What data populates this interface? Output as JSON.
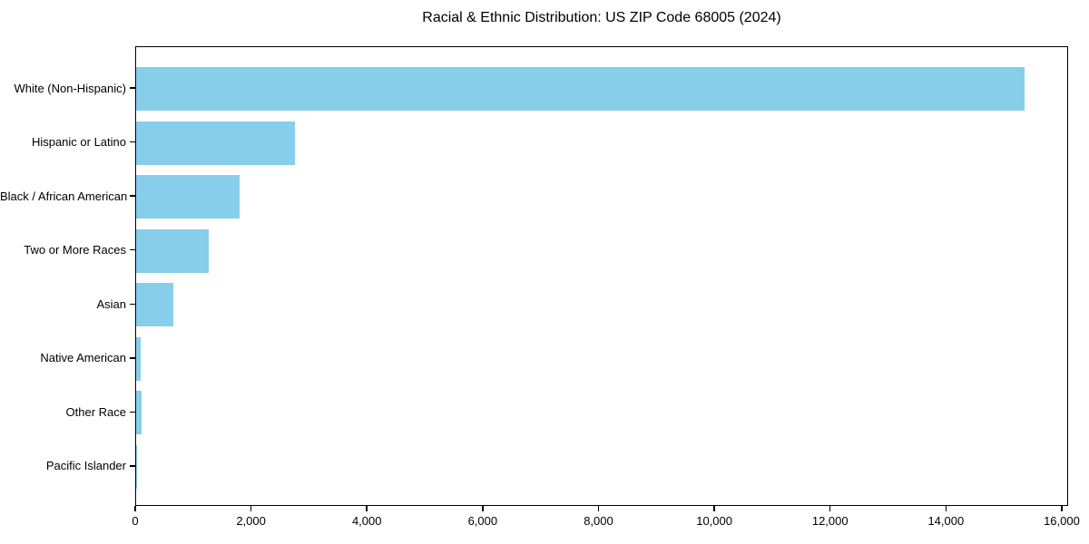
{
  "title": "Racial & Ethnic Distribution: US ZIP Code 68005 (2024)",
  "chart_data": {
    "type": "bar",
    "orientation": "horizontal",
    "title": "Racial & Ethnic Distribution: US ZIP Code 68005 (2024)",
    "xlabel": "",
    "ylabel": "",
    "categories": [
      "White (Non-Hispanic)",
      "Hispanic or Latino",
      "Black / African American",
      "Two or More Races",
      "Asian",
      "Native American",
      "Other Race",
      "Pacific Islander"
    ],
    "values": [
      15340,
      2740,
      1780,
      1260,
      645,
      75,
      95,
      10
    ],
    "xlim": [
      0,
      16110
    ],
    "xticks": [
      0,
      2000,
      4000,
      6000,
      8000,
      10000,
      12000,
      14000,
      16000
    ],
    "xtick_labels": [
      "0",
      "2,000",
      "4,000",
      "6,000",
      "8,000",
      "10,000",
      "12,000",
      "14,000",
      "16,000"
    ],
    "bar_color": "#87CEEB",
    "grid": false,
    "legend": null
  }
}
